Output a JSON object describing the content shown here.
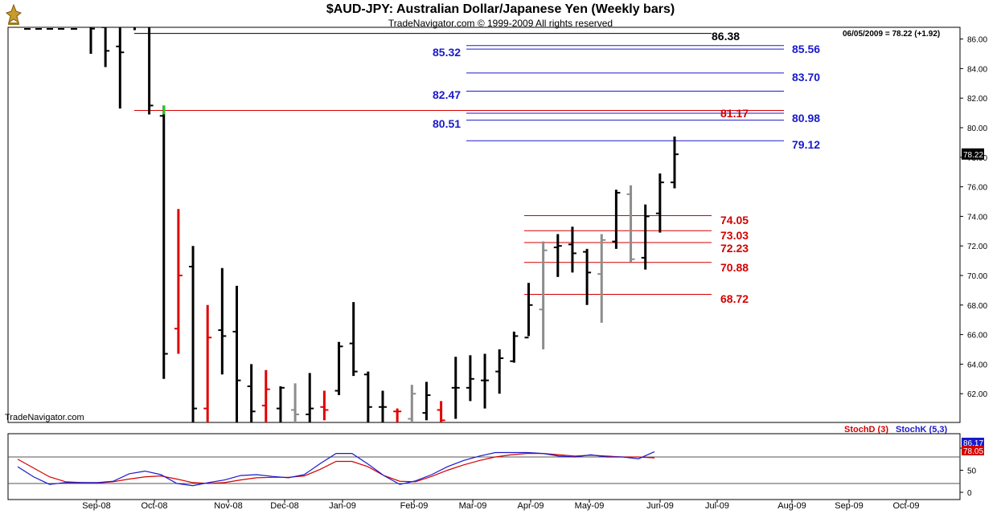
{
  "header": {
    "title": "$AUD-JPY:  Australian Dollar/Japanese Yen  (Weekly bars)",
    "subtitle": "TradeNavigator.com © 1999-2009 All rights reserved",
    "readout": "06/05/2009 = 78.22 (+1.92)",
    "watermark": "TradeNavigator.com"
  },
  "colors": {
    "up_bar": "#000000",
    "down_bar": "#e00000",
    "inside_bar": "#8c8c8c",
    "highlight_bar": "#22cc22",
    "resistance_line": "#1a1acc",
    "support_line": "#d40000",
    "stoch_d": "#d40000",
    "stoch_k": "#1a1acc",
    "last_price_bg": "#000000"
  },
  "chart_data": [
    {
      "type": "ohlc",
      "title": "$AUD-JPY:  Australian Dollar/Japanese Yen  (Weekly bars)",
      "ylim": [
        60,
        87
      ],
      "y_ticks": [
        "62.00",
        "64.00",
        "66.00",
        "68.00",
        "70.00",
        "72.00",
        "74.00",
        "76.00",
        "78.00",
        "80.00",
        "82.00",
        "84.00",
        "86.00"
      ],
      "x_ticks": [
        "Sep-08",
        "Oct-08",
        "Nov-08",
        "Dec-08",
        "Jan-09",
        "Feb-09",
        "Mar-09",
        "Apr-09",
        "May-09",
        "Jun-09",
        "Jul-09",
        "Aug-09",
        "Sep-09",
        "Oct-09"
      ],
      "last_price": "78.22",
      "levels": [
        {
          "label": "86.38",
          "value": 86.38,
          "color": "black",
          "side": "right"
        },
        {
          "label": "85.56",
          "value": 85.56,
          "color": "blue",
          "side": "right"
        },
        {
          "label": "85.32",
          "value": 85.32,
          "color": "blue",
          "side": "left"
        },
        {
          "label": "83.70",
          "value": 83.7,
          "color": "blue",
          "side": "right"
        },
        {
          "label": "82.47",
          "value": 82.47,
          "color": "blue",
          "side": "left"
        },
        {
          "label": "81.17",
          "value": 81.17,
          "color": "red",
          "side": "right"
        },
        {
          "label": "80.98",
          "value": 80.98,
          "color": "blue",
          "side": "right"
        },
        {
          "label": "80.51",
          "value": 80.51,
          "color": "blue",
          "side": "left"
        },
        {
          "label": "79.12",
          "value": 79.12,
          "color": "blue",
          "side": "right"
        },
        {
          "label": "74.05",
          "value": 74.05,
          "color": "red",
          "side": "right"
        },
        {
          "label": "73.03",
          "value": 73.03,
          "color": "red",
          "side": "right"
        },
        {
          "label": "72.23",
          "value": 72.23,
          "color": "red",
          "side": "right"
        },
        {
          "label": "70.88",
          "value": 70.88,
          "color": "red",
          "side": "right"
        },
        {
          "label": "68.72",
          "value": 68.72,
          "color": "red",
          "side": "right"
        }
      ],
      "bars": [
        {
          "h": 88.0,
          "l": 85.0,
          "o": 86.9,
          "c": 86.7,
          "col": "up"
        },
        {
          "h": 88.0,
          "l": 84.1,
          "o": 86.8,
          "c": 85.2,
          "col": "up"
        },
        {
          "h": 88.0,
          "l": 81.3,
          "o": 85.5,
          "c": 85.1,
          "col": "up"
        },
        {
          "h": 88.0,
          "l": 86.6,
          "o": 87.5,
          "c": 86.9,
          "col": "up"
        },
        {
          "h": 88.0,
          "l": 80.9,
          "o": 86.9,
          "c": 81.5,
          "col": "up"
        },
        {
          "h": 81.5,
          "l": 63.0,
          "o": 80.8,
          "c": 64.7,
          "col": "up"
        },
        {
          "h": 74.5,
          "l": 64.7,
          "o": 66.4,
          "c": 70.0,
          "col": "down"
        },
        {
          "h": 72.0,
          "l": 60.0,
          "o": 70.6,
          "c": 61.0,
          "col": "up"
        },
        {
          "h": 68.0,
          "l": 60.0,
          "o": 61.0,
          "c": 65.8,
          "col": "down"
        },
        {
          "h": 70.5,
          "l": 63.3,
          "o": 66.3,
          "c": 65.9,
          "col": "up"
        },
        {
          "h": 69.3,
          "l": 60.0,
          "o": 66.2,
          "c": 62.9,
          "col": "up"
        },
        {
          "h": 64.0,
          "l": 60.0,
          "o": 62.5,
          "c": 60.8,
          "col": "up"
        },
        {
          "h": 63.6,
          "l": 60.0,
          "o": 61.2,
          "c": 62.3,
          "col": "down"
        },
        {
          "h": 62.5,
          "l": 60.0,
          "o": 61.0,
          "c": 62.4,
          "col": "up"
        },
        {
          "h": 62.7,
          "l": 60.0,
          "o": 60.9,
          "c": 60.6,
          "col": "inside"
        },
        {
          "h": 63.4,
          "l": 60.0,
          "o": 60.6,
          "c": 61.0,
          "col": "up"
        },
        {
          "h": 62.2,
          "l": 60.2,
          "o": 61.1,
          "c": 60.9,
          "col": "down"
        },
        {
          "h": 65.5,
          "l": 61.9,
          "o": 62.2,
          "c": 65.2,
          "col": "up"
        },
        {
          "h": 68.2,
          "l": 63.2,
          "o": 65.4,
          "c": 63.5,
          "col": "up"
        },
        {
          "h": 63.5,
          "l": 60.0,
          "o": 63.3,
          "c": 61.1,
          "col": "up"
        },
        {
          "h": 62.2,
          "l": 60.0,
          "o": 61.1,
          "c": 61.1,
          "col": "up"
        },
        {
          "h": 61.0,
          "l": 60.0,
          "o": 60.8,
          "c": 60.8,
          "col": "down"
        },
        {
          "h": 62.6,
          "l": 60.0,
          "o": 60.3,
          "c": 62.0,
          "col": "inside"
        },
        {
          "h": 62.8,
          "l": 60.2,
          "o": 60.7,
          "c": 61.9,
          "col": "up"
        },
        {
          "h": 61.5,
          "l": 60.0,
          "o": 60.9,
          "c": 60.2,
          "col": "down"
        },
        {
          "h": 64.5,
          "l": 60.3,
          "o": 62.4,
          "c": 62.4,
          "col": "up"
        },
        {
          "h": 64.6,
          "l": 61.5,
          "o": 62.4,
          "c": 63.0,
          "col": "up"
        },
        {
          "h": 64.7,
          "l": 61.0,
          "o": 62.9,
          "c": 62.9,
          "col": "up"
        },
        {
          "h": 65.0,
          "l": 62.0,
          "o": 63.5,
          "c": 64.4,
          "col": "up"
        },
        {
          "h": 66.2,
          "l": 64.1,
          "o": 64.2,
          "c": 65.9,
          "col": "up"
        },
        {
          "h": 69.5,
          "l": 65.9,
          "o": 65.8,
          "c": 68.0,
          "col": "up"
        },
        {
          "h": 72.3,
          "l": 65.0,
          "o": 67.7,
          "c": 71.7,
          "col": "inside"
        },
        {
          "h": 72.8,
          "l": 69.9,
          "o": 71.9,
          "c": 72.0,
          "col": "up"
        },
        {
          "h": 73.3,
          "l": 70.2,
          "o": 72.1,
          "c": 71.5,
          "col": "up"
        },
        {
          "h": 71.8,
          "l": 68.0,
          "o": 71.6,
          "c": 70.2,
          "col": "up"
        },
        {
          "h": 72.8,
          "l": 66.8,
          "o": 70.1,
          "c": 72.4,
          "col": "inside"
        },
        {
          "h": 75.8,
          "l": 71.8,
          "o": 72.3,
          "c": 75.6,
          "col": "up"
        },
        {
          "h": 76.1,
          "l": 70.9,
          "o": 75.5,
          "c": 71.1,
          "col": "inside"
        },
        {
          "h": 74.8,
          "l": 70.4,
          "o": 71.2,
          "c": 74.0,
          "col": "up"
        },
        {
          "h": 76.9,
          "l": 72.9,
          "o": 74.2,
          "c": 76.3,
          "col": "up"
        },
        {
          "h": 79.4,
          "l": 75.9,
          "o": 76.3,
          "c": 78.2,
          "col": "up"
        }
      ]
    },
    {
      "type": "line",
      "title": "Stochastic",
      "ylim": [
        0,
        100
      ],
      "y_ticks": [
        "0",
        "50",
        "100"
      ],
      "reference_lines": [
        20,
        80
      ],
      "series": [
        {
          "name": "StochD (3)",
          "color": "red",
          "values": [
            75,
            55,
            35,
            24,
            22,
            21,
            24,
            30,
            35,
            37,
            30,
            22,
            20,
            22,
            28,
            33,
            34,
            34,
            37,
            52,
            70,
            70,
            58,
            38,
            25,
            24,
            36,
            50,
            62,
            72,
            80,
            85,
            88,
            88,
            85,
            82,
            84,
            82,
            80,
            80,
            78
          ]
        },
        {
          "name": "StochK (5,3)",
          "color": "blue",
          "values": [
            58,
            35,
            18,
            22,
            22,
            22,
            25,
            42,
            48,
            40,
            20,
            15,
            22,
            28,
            38,
            40,
            36,
            33,
            40,
            65,
            88,
            88,
            64,
            38,
            18,
            26,
            40,
            58,
            72,
            82,
            90,
            90,
            90,
            88,
            82,
            80,
            85,
            80,
            80,
            76,
            92
          ]
        }
      ],
      "value_labels": [
        "86.17",
        "78.05"
      ]
    }
  ]
}
